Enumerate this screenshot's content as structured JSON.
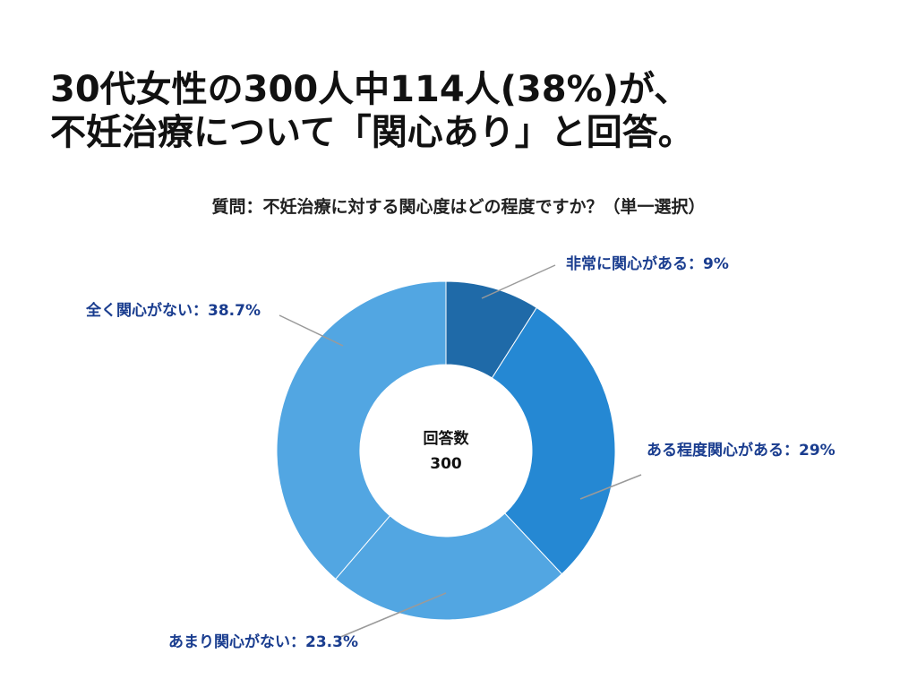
{
  "headline": {
    "line1": "30代女性の300人中114人(38%)が、",
    "line2": "不妊治療について「関心あり」と回答。"
  },
  "question": "質問：不妊治療に対する関心度はどの程度ですか？（単一選択）",
  "center": {
    "label": "回答数",
    "value": "300"
  },
  "colors": {
    "label_text": "#1a3d8f",
    "leader_line": "#9a9a9a"
  },
  "chart_data": {
    "type": "pie",
    "donut": true,
    "total": 300,
    "slices": [
      {
        "label": "非常に関心がある：9%",
        "value": 9,
        "color": "#1f6aa8"
      },
      {
        "label": "ある程度関心がある：29%",
        "value": 29,
        "color": "#2588d3"
      },
      {
        "label": "あまり関心がない：23.3%",
        "value": 23.3,
        "color": "#52a6e2"
      },
      {
        "label": "全く関心がない：38.7%",
        "value": 38.7,
        "color": "#52a6e2"
      }
    ]
  }
}
